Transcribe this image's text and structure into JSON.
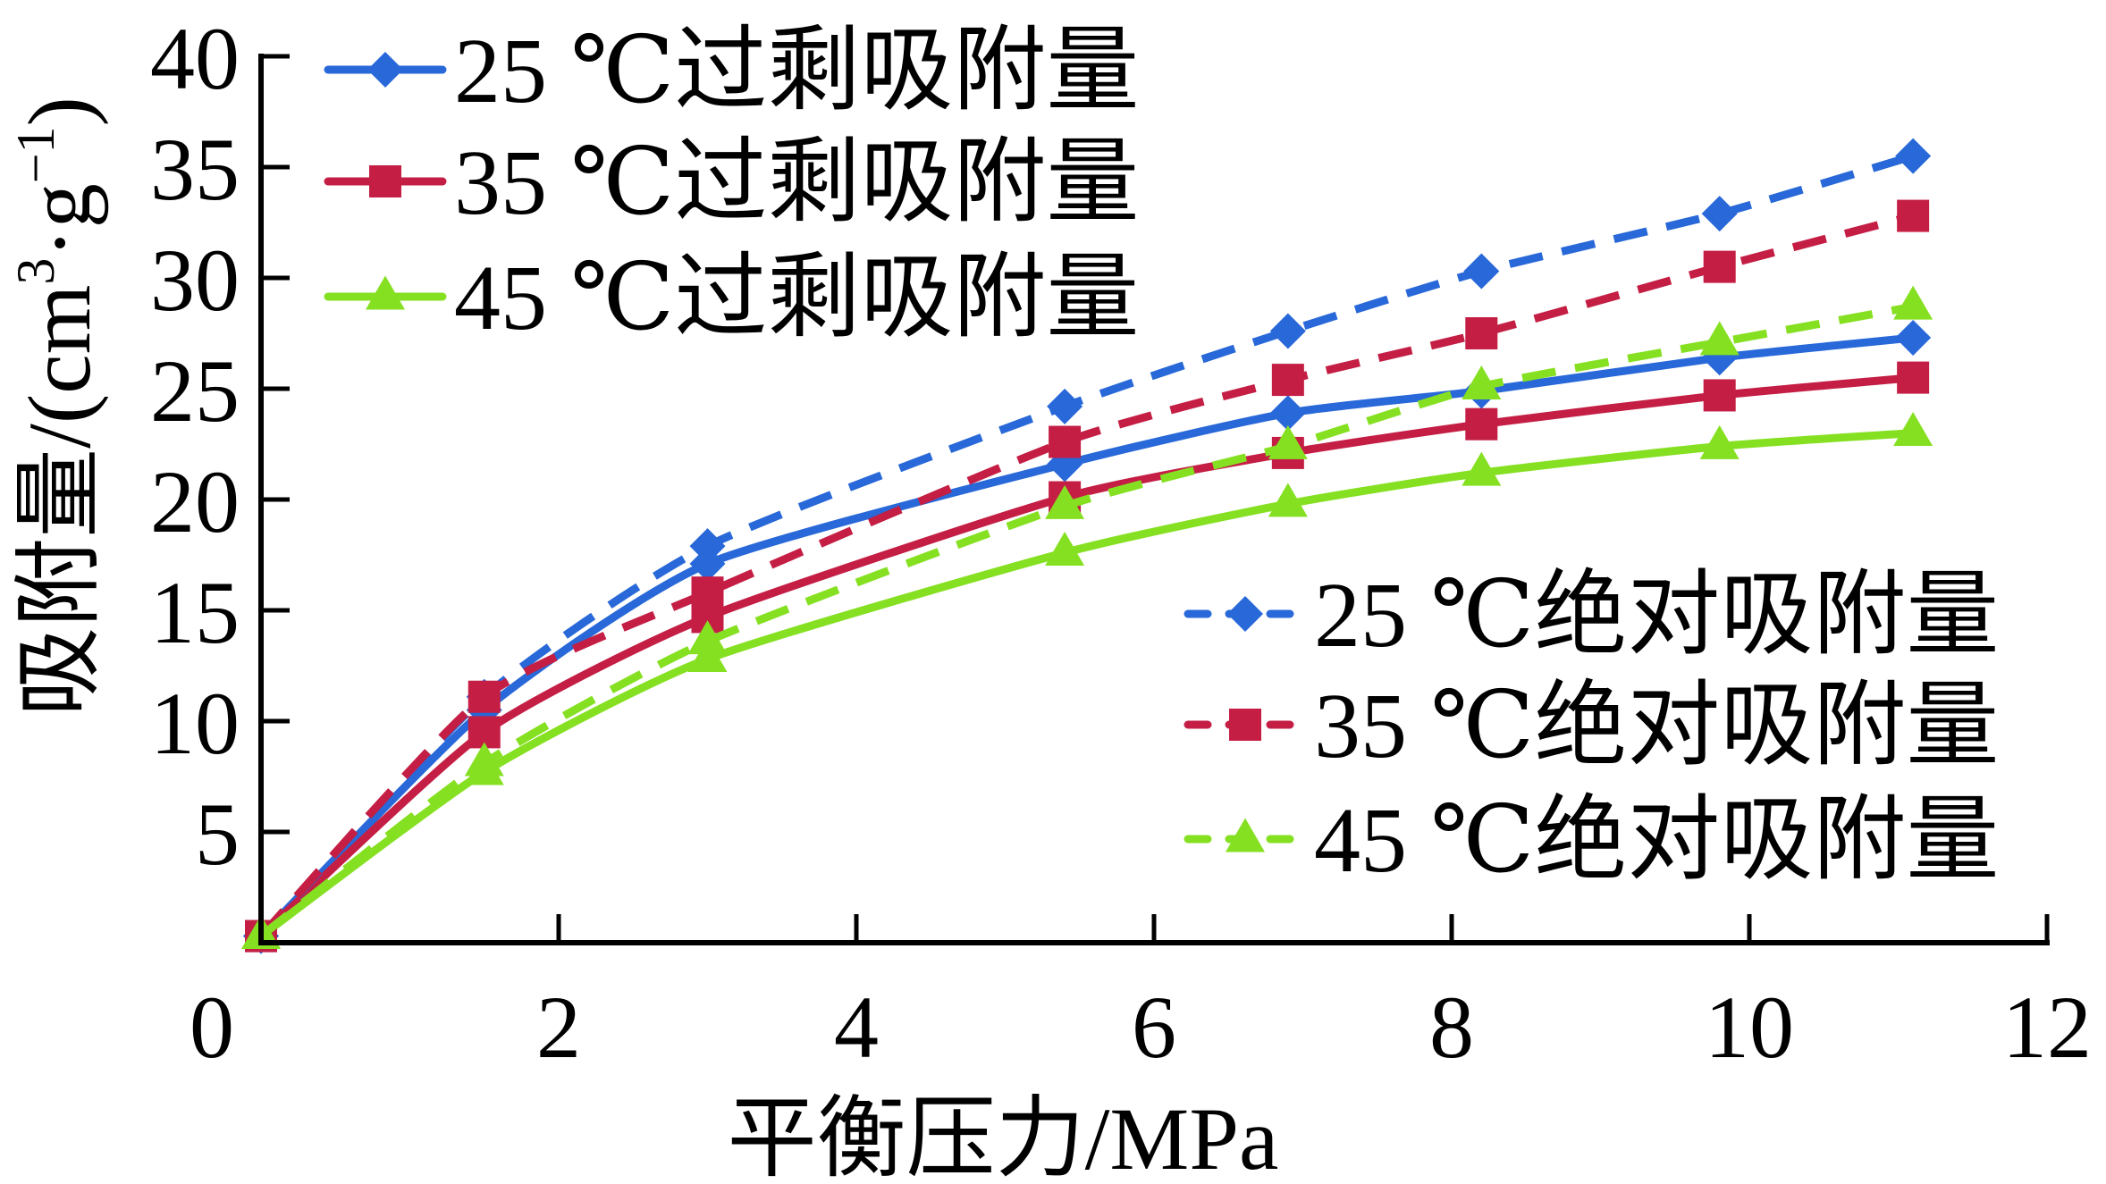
{
  "chart_data": {
    "type": "line",
    "title": "",
    "xlabel": "平衡压力/MPa",
    "ylabel": "吸附量/(cm³·g⁻¹)",
    "ylabel_parts": {
      "main": "吸附量/(cm",
      "sup1": "3",
      "mid": "·g",
      "sup2": "−1",
      "end": ")"
    },
    "xlim": [
      0,
      12
    ],
    "ylim": [
      0,
      40
    ],
    "x_ticks": [
      0,
      2,
      4,
      6,
      8,
      10,
      12
    ],
    "x_tick_labels": [
      "0",
      "2",
      "4",
      "6",
      "8",
      "10",
      "12"
    ],
    "y_ticks": [
      5,
      10,
      15,
      20,
      25,
      30,
      35,
      40
    ],
    "y_tick_labels": [
      "5",
      "10",
      "15",
      "20",
      "25",
      "30",
      "35",
      "40"
    ],
    "grid": false,
    "x": [
      0,
      1.5,
      3.0,
      5.4,
      6.9,
      8.2,
      9.8,
      11.1
    ],
    "series": [
      {
        "name": "25 ℃过剩吸附量",
        "color": "#2868D8",
        "marker": "diamond",
        "dash": false,
        "values": [
          0.3,
          10.5,
          17.1,
          21.6,
          23.9,
          24.9,
          26.4,
          27.3
        ]
      },
      {
        "name": "35 ℃过剩吸附量",
        "color": "#C41E44",
        "marker": "square",
        "dash": false,
        "values": [
          0.3,
          9.5,
          14.7,
          20.1,
          22.1,
          23.4,
          24.7,
          25.5
        ]
      },
      {
        "name": "45 ℃过剩吸附量",
        "color": "#86E022",
        "marker": "triangle",
        "dash": false,
        "values": [
          0.3,
          7.7,
          12.8,
          17.6,
          19.8,
          21.2,
          22.4,
          23.0
        ]
      },
      {
        "name": "25 ℃绝对吸附量",
        "color": "#2868D8",
        "marker": "diamond",
        "dash": true,
        "values": [
          0.3,
          11.1,
          17.9,
          24.2,
          27.6,
          30.3,
          32.9,
          35.5
        ]
      },
      {
        "name": "35 ℃绝对吸附量",
        "color": "#C41E44",
        "marker": "square",
        "dash": true,
        "values": [
          0.3,
          11.1,
          15.8,
          22.6,
          25.4,
          27.5,
          30.5,
          32.8
        ]
      },
      {
        "name": "45 ℃绝对吸附量",
        "color": "#86E022",
        "marker": "triangle",
        "dash": true,
        "values": [
          0.3,
          8.1,
          13.6,
          19.7,
          22.4,
          25.1,
          27.1,
          28.7
        ]
      }
    ],
    "legend": [
      {
        "placement": "top-left",
        "entries": [
          0,
          1,
          2
        ]
      },
      {
        "placement": "center-right",
        "entries": [
          3,
          4,
          5
        ]
      }
    ]
  }
}
